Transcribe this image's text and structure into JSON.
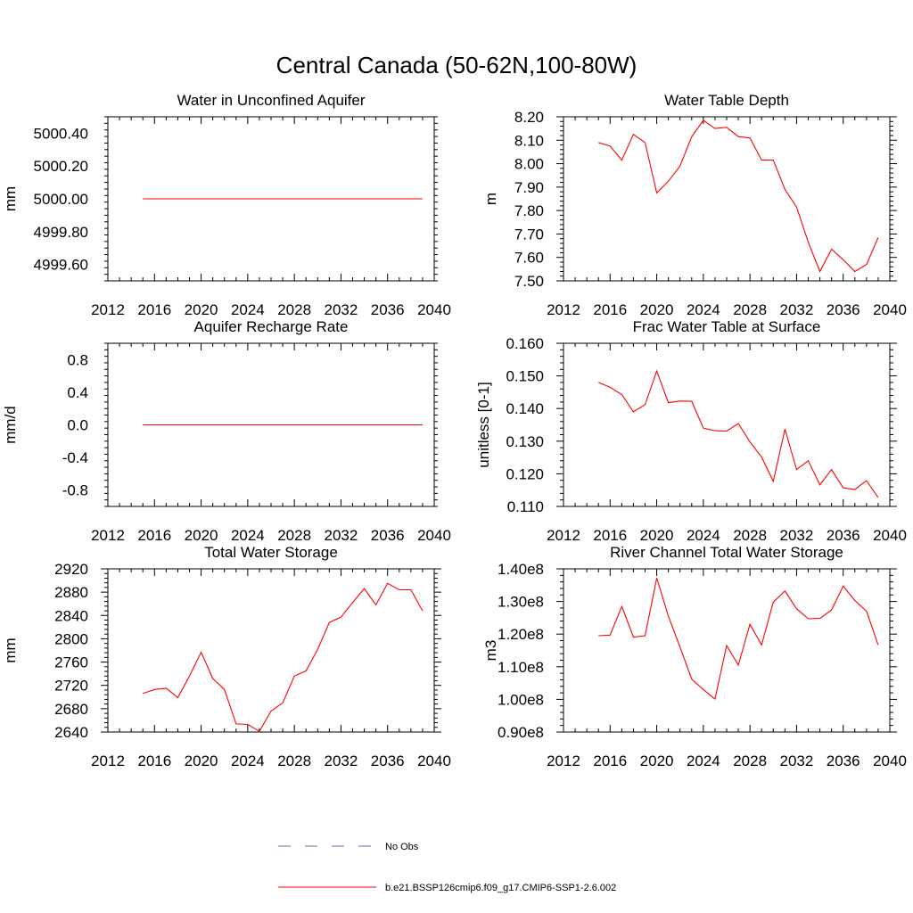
{
  "figure": {
    "title": "Central Canada (50-62N,100-80W)"
  },
  "legend": {
    "entries": [
      {
        "label": "No Obs",
        "color": "#6a6ab0",
        "style": "dashed"
      },
      {
        "label": "b.e21.BSSP126cmip6.f09_g17.CMIP6-SSP1-2.6.002",
        "color": "#ff0000",
        "style": "solid"
      }
    ]
  },
  "chart_data": [
    {
      "type": "line",
      "title": "Water in Unconfined Aquifer",
      "ylabel": "mm",
      "xlim": [
        2012,
        2040
      ],
      "ylim": [
        4999.5,
        5000.5
      ],
      "xticks": [
        2012,
        2016,
        2020,
        2024,
        2028,
        2032,
        2036,
        2040
      ],
      "yticks": [
        4999.6,
        4999.8,
        5000.0,
        5000.2,
        5000.4
      ],
      "ytick_labels": [
        "4999.60",
        "4999.80",
        "5000.00",
        "5000.20",
        "5000.40"
      ],
      "series": [
        {
          "color": "#ff0000",
          "x": [
            2015,
            2016,
            2017,
            2018,
            2019,
            2020,
            2021,
            2022,
            2023,
            2024,
            2025,
            2026,
            2027,
            2028,
            2029,
            2030,
            2031,
            2032,
            2033,
            2034,
            2035,
            2036,
            2037,
            2038,
            2039
          ],
          "y": [
            5000,
            5000,
            5000,
            5000,
            5000,
            5000,
            5000,
            5000,
            5000,
            5000,
            5000,
            5000,
            5000,
            5000,
            5000,
            5000,
            5000,
            5000,
            5000,
            5000,
            5000,
            5000,
            5000,
            5000,
            5000
          ]
        }
      ]
    },
    {
      "type": "line",
      "title": "Water Table Depth",
      "ylabel": "m",
      "xlim": [
        2012,
        2040
      ],
      "ylim": [
        7.5,
        8.2
      ],
      "xticks": [
        2012,
        2016,
        2020,
        2024,
        2028,
        2032,
        2036,
        2040
      ],
      "yticks": [
        7.5,
        7.6,
        7.7,
        7.8,
        7.9,
        8.0,
        8.1,
        8.2
      ],
      "ytick_labels": [
        "7.50",
        "7.60",
        "7.70",
        "7.80",
        "7.90",
        "8.00",
        "8.10",
        "8.20"
      ],
      "series": [
        {
          "color": "#ff0000",
          "x": [
            2015,
            2016,
            2017,
            2018,
            2019,
            2020,
            2021,
            2022,
            2023,
            2024,
            2025,
            2026,
            2027,
            2028,
            2029,
            2030,
            2031,
            2032,
            2033,
            2034,
            2035,
            2036,
            2037,
            2038,
            2039
          ],
          "y": [
            8.09,
            8.075,
            8.015,
            8.125,
            8.09,
            7.875,
            7.925,
            7.99,
            8.115,
            8.185,
            8.15,
            8.155,
            8.115,
            8.11,
            8.015,
            8.015,
            7.89,
            7.815,
            7.665,
            7.54,
            7.635,
            7.59,
            7.54,
            7.57,
            7.685
          ]
        }
      ]
    },
    {
      "type": "line",
      "title": "Aquifer Recharge Rate",
      "ylabel": "mm/d",
      "xlim": [
        2012,
        2040
      ],
      "ylim": [
        -1.0,
        1.0
      ],
      "xticks": [
        2012,
        2016,
        2020,
        2024,
        2028,
        2032,
        2036,
        2040
      ],
      "yticks": [
        -0.8,
        -0.4,
        0.0,
        0.4,
        0.8
      ],
      "ytick_labels": [
        "-0.8",
        "-0.4",
        "0.0",
        "0.4",
        "0.8"
      ],
      "series": [
        {
          "color": "#ff0000",
          "x": [
            2015,
            2016,
            2017,
            2018,
            2019,
            2020,
            2021,
            2022,
            2023,
            2024,
            2025,
            2026,
            2027,
            2028,
            2029,
            2030,
            2031,
            2032,
            2033,
            2034,
            2035,
            2036,
            2037,
            2038,
            2039
          ],
          "y": [
            0,
            0,
            0,
            0,
            0,
            0,
            0,
            0,
            0,
            0,
            0,
            0,
            0,
            0,
            0,
            0,
            0,
            0,
            0,
            0,
            0,
            0,
            0,
            0,
            0
          ]
        }
      ]
    },
    {
      "type": "line",
      "title": "Frac Water Table at Surface",
      "ylabel": "unitless [0-1]",
      "xlim": [
        2012,
        2040
      ],
      "ylim": [
        0.11,
        0.16
      ],
      "xticks": [
        2012,
        2016,
        2020,
        2024,
        2028,
        2032,
        2036,
        2040
      ],
      "yticks": [
        0.11,
        0.12,
        0.13,
        0.14,
        0.15,
        0.16
      ],
      "ytick_labels": [
        "0.110",
        "0.120",
        "0.130",
        "0.140",
        "0.150",
        "0.160"
      ],
      "series": [
        {
          "color": "#ff0000",
          "x": [
            2015,
            2016,
            2017,
            2018,
            2019,
            2020,
            2021,
            2022,
            2023,
            2024,
            2025,
            2026,
            2027,
            2028,
            2029,
            2030,
            2031,
            2032,
            2033,
            2034,
            2035,
            2036,
            2037,
            2038,
            2039
          ],
          "y": [
            0.148,
            0.1465,
            0.1443,
            0.139,
            0.1412,
            0.1515,
            0.1418,
            0.1423,
            0.1422,
            0.134,
            0.1332,
            0.1331,
            0.1354,
            0.1298,
            0.1251,
            0.1177,
            0.1337,
            0.1213,
            0.124,
            0.1166,
            0.1213,
            0.1157,
            0.1152,
            0.1179,
            0.1127
          ]
        }
      ]
    },
    {
      "type": "line",
      "title": "Total Water Storage",
      "ylabel": "mm",
      "xlim": [
        2012,
        2040
      ],
      "ylim": [
        2640,
        2920
      ],
      "xticks": [
        2012,
        2016,
        2020,
        2024,
        2028,
        2032,
        2036,
        2040
      ],
      "yticks": [
        2640,
        2680,
        2720,
        2760,
        2800,
        2840,
        2880,
        2920
      ],
      "ytick_labels": [
        "2640",
        "2680",
        "2720",
        "2760",
        "2800",
        "2840",
        "2880",
        "2920"
      ],
      "series": [
        {
          "color": "#ff0000",
          "x": [
            2015,
            2016,
            2017,
            2018,
            2019,
            2020,
            2021,
            2022,
            2023,
            2024,
            2025,
            2026,
            2027,
            2028,
            2029,
            2030,
            2031,
            2032,
            2033,
            2034,
            2035,
            2036,
            2037,
            2038,
            2039
          ],
          "y": [
            2706,
            2713,
            2715,
            2699,
            2736,
            2777,
            2732,
            2713,
            2654,
            2653,
            2641,
            2676,
            2690,
            2736,
            2745,
            2782,
            2828,
            2837,
            2862,
            2886,
            2858,
            2895,
            2884,
            2884,
            2848
          ]
        }
      ]
    },
    {
      "type": "line",
      "title": "River Channel Total Water Storage",
      "ylabel": "m3",
      "xlim": [
        2012,
        2040
      ],
      "ylim": [
        0.9,
        1.4
      ],
      "xticks": [
        2012,
        2016,
        2020,
        2024,
        2028,
        2032,
        2036,
        2040
      ],
      "yticks": [
        0.9,
        1.0,
        1.1,
        1.2,
        1.3,
        1.4
      ],
      "ytick_labels": [
        "0.90e8",
        "1.00e8",
        "1.10e8",
        "1.20e8",
        "1.30e8",
        "1.40e8"
      ],
      "series": [
        {
          "color": "#ff0000",
          "x": [
            2015,
            2016,
            2017,
            2018,
            2019,
            2020,
            2021,
            2022,
            2023,
            2024,
            2025,
            2026,
            2027,
            2028,
            2029,
            2030,
            2031,
            2032,
            2033,
            2034,
            2035,
            2036,
            2037,
            2038,
            2039
          ],
          "y": [
            1.195,
            1.197,
            1.285,
            1.191,
            1.195,
            1.372,
            1.255,
            1.16,
            1.062,
            1.03,
            1.001,
            1.165,
            1.105,
            1.23,
            1.167,
            1.298,
            1.332,
            1.278,
            1.247,
            1.248,
            1.274,
            1.347,
            1.303,
            1.27,
            1.167
          ]
        }
      ]
    }
  ]
}
